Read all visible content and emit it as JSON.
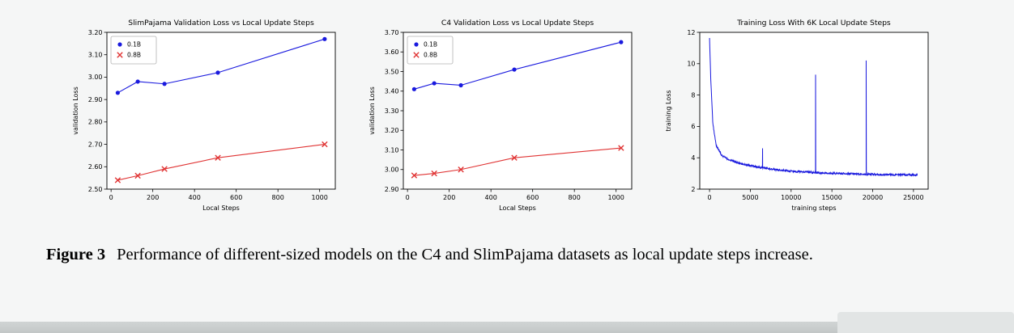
{
  "page": {
    "background": "#f5f6f6",
    "bottom_bar_color": "#c6caca",
    "bottom_bar_right_color": "#e2e5e5"
  },
  "figure": {
    "caption_label": "Figure 3",
    "caption_text": "Performance of different-sized models on the C4 and SlimPajama datasets as local update steps increase."
  },
  "colors": {
    "series_blue": "#1a1ade",
    "series_red": "#e03434",
    "axis": "#000000",
    "legend_border": "#b3b3b3"
  },
  "chart_data": [
    {
      "type": "line",
      "title": "SlimPajama Validation Loss vs Local Update Steps",
      "xlabel": "Local Steps",
      "ylabel": "validation Loss",
      "xlim": [
        -20,
        1075
      ],
      "ylim": [
        2.5,
        3.2
      ],
      "xticks": [
        0,
        200,
        400,
        600,
        800,
        1000
      ],
      "yticks": [
        2.5,
        2.6,
        2.7,
        2.8,
        2.9,
        3.0,
        3.1,
        3.2
      ],
      "xdec": 0,
      "ydec": 2,
      "legend": true,
      "legend_position": "upper-left",
      "grid": false,
      "x": [
        32,
        128,
        256,
        512,
        1024
      ],
      "series": [
        {
          "name": "0.1B",
          "color": "#1a1ade",
          "marker": "dot",
          "values": [
            2.93,
            2.98,
            2.97,
            3.02,
            3.17
          ]
        },
        {
          "name": "0.8B",
          "color": "#e03434",
          "marker": "x",
          "values": [
            2.54,
            2.56,
            2.59,
            2.64,
            2.7
          ]
        }
      ]
    },
    {
      "type": "line",
      "title": "C4 Validation Loss vs Local Update Steps",
      "xlabel": "Local Steps",
      "ylabel": "validation Loss",
      "xlim": [
        -20,
        1075
      ],
      "ylim": [
        2.9,
        3.7
      ],
      "xticks": [
        0,
        200,
        400,
        600,
        800,
        1000
      ],
      "yticks": [
        2.9,
        3.0,
        3.1,
        3.2,
        3.3,
        3.4,
        3.5,
        3.6,
        3.7
      ],
      "xdec": 0,
      "ydec": 2,
      "legend": true,
      "legend_position": "upper-left",
      "grid": false,
      "x": [
        32,
        128,
        256,
        512,
        1024
      ],
      "series": [
        {
          "name": "0.1B",
          "color": "#1a1ade",
          "marker": "dot",
          "values": [
            3.41,
            3.44,
            3.43,
            3.51,
            3.65
          ]
        },
        {
          "name": "0.8B",
          "color": "#e03434",
          "marker": "x",
          "values": [
            2.97,
            2.98,
            3.0,
            3.06,
            3.11
          ]
        }
      ]
    },
    {
      "type": "line",
      "title": "Training Loss With 6K Local Update Steps",
      "xlabel": "training steps",
      "ylabel": "training Loss",
      "xlim": [
        -1200,
        26800
      ],
      "ylim": [
        2,
        12
      ],
      "xticks": [
        0,
        5000,
        10000,
        15000,
        20000,
        25000
      ],
      "yticks": [
        2,
        4,
        6,
        8,
        10,
        12
      ],
      "xdec": 0,
      "ydec": 0,
      "legend": false,
      "grid": false,
      "series": [
        {
          "name": "training-loss",
          "color": "#1a1ade",
          "marker": "none",
          "noise": 0.06,
          "trend": [
            [
              0,
              11.6
            ],
            [
              150,
              9.0
            ],
            [
              400,
              6.2
            ],
            [
              800,
              4.8
            ],
            [
              1500,
              4.15
            ],
            [
              2500,
              3.85
            ],
            [
              4000,
              3.6
            ],
            [
              6000,
              3.4
            ],
            [
              8000,
              3.25
            ],
            [
              10000,
              3.15
            ],
            [
              13000,
              3.05
            ],
            [
              16000,
              3.0
            ],
            [
              19000,
              2.95
            ],
            [
              22000,
              2.92
            ],
            [
              25500,
              2.9
            ]
          ],
          "spikes": [
            {
              "x": 6500,
              "peak": 4.6
            },
            {
              "x": 13000,
              "peak": 9.3
            },
            {
              "x": 19200,
              "peak": 10.2
            }
          ]
        }
      ]
    }
  ]
}
